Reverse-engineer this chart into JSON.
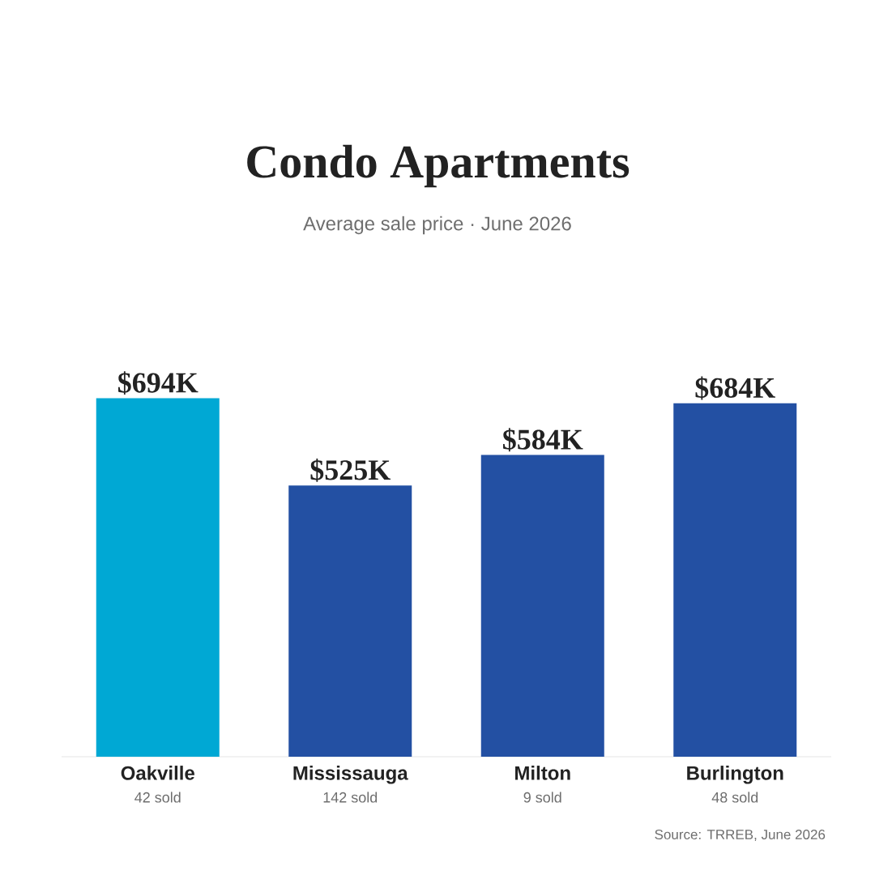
{
  "chart_data": {
    "type": "bar",
    "title": "Condo Apartments",
    "subtitle": "Average sale price  ·  June 2026",
    "categories": [
      "Oakville",
      "Mississauga",
      "Milton",
      "Burlington"
    ],
    "values": [
      694,
      525,
      584,
      684
    ],
    "colors": [
      "#00a8d4",
      "#2350a3",
      "#2350a3",
      "#2350a3"
    ],
    "value_labels": [
      "$694K",
      "$525K",
      "$584K",
      "$684K"
    ],
    "tick_labels": "x",
    "grid": false,
    "annotations": [
      "42 sold",
      "142 sold",
      "9 sold",
      "48 sold",
      "Source: TRREB, June 2026"
    ]
  }
}
